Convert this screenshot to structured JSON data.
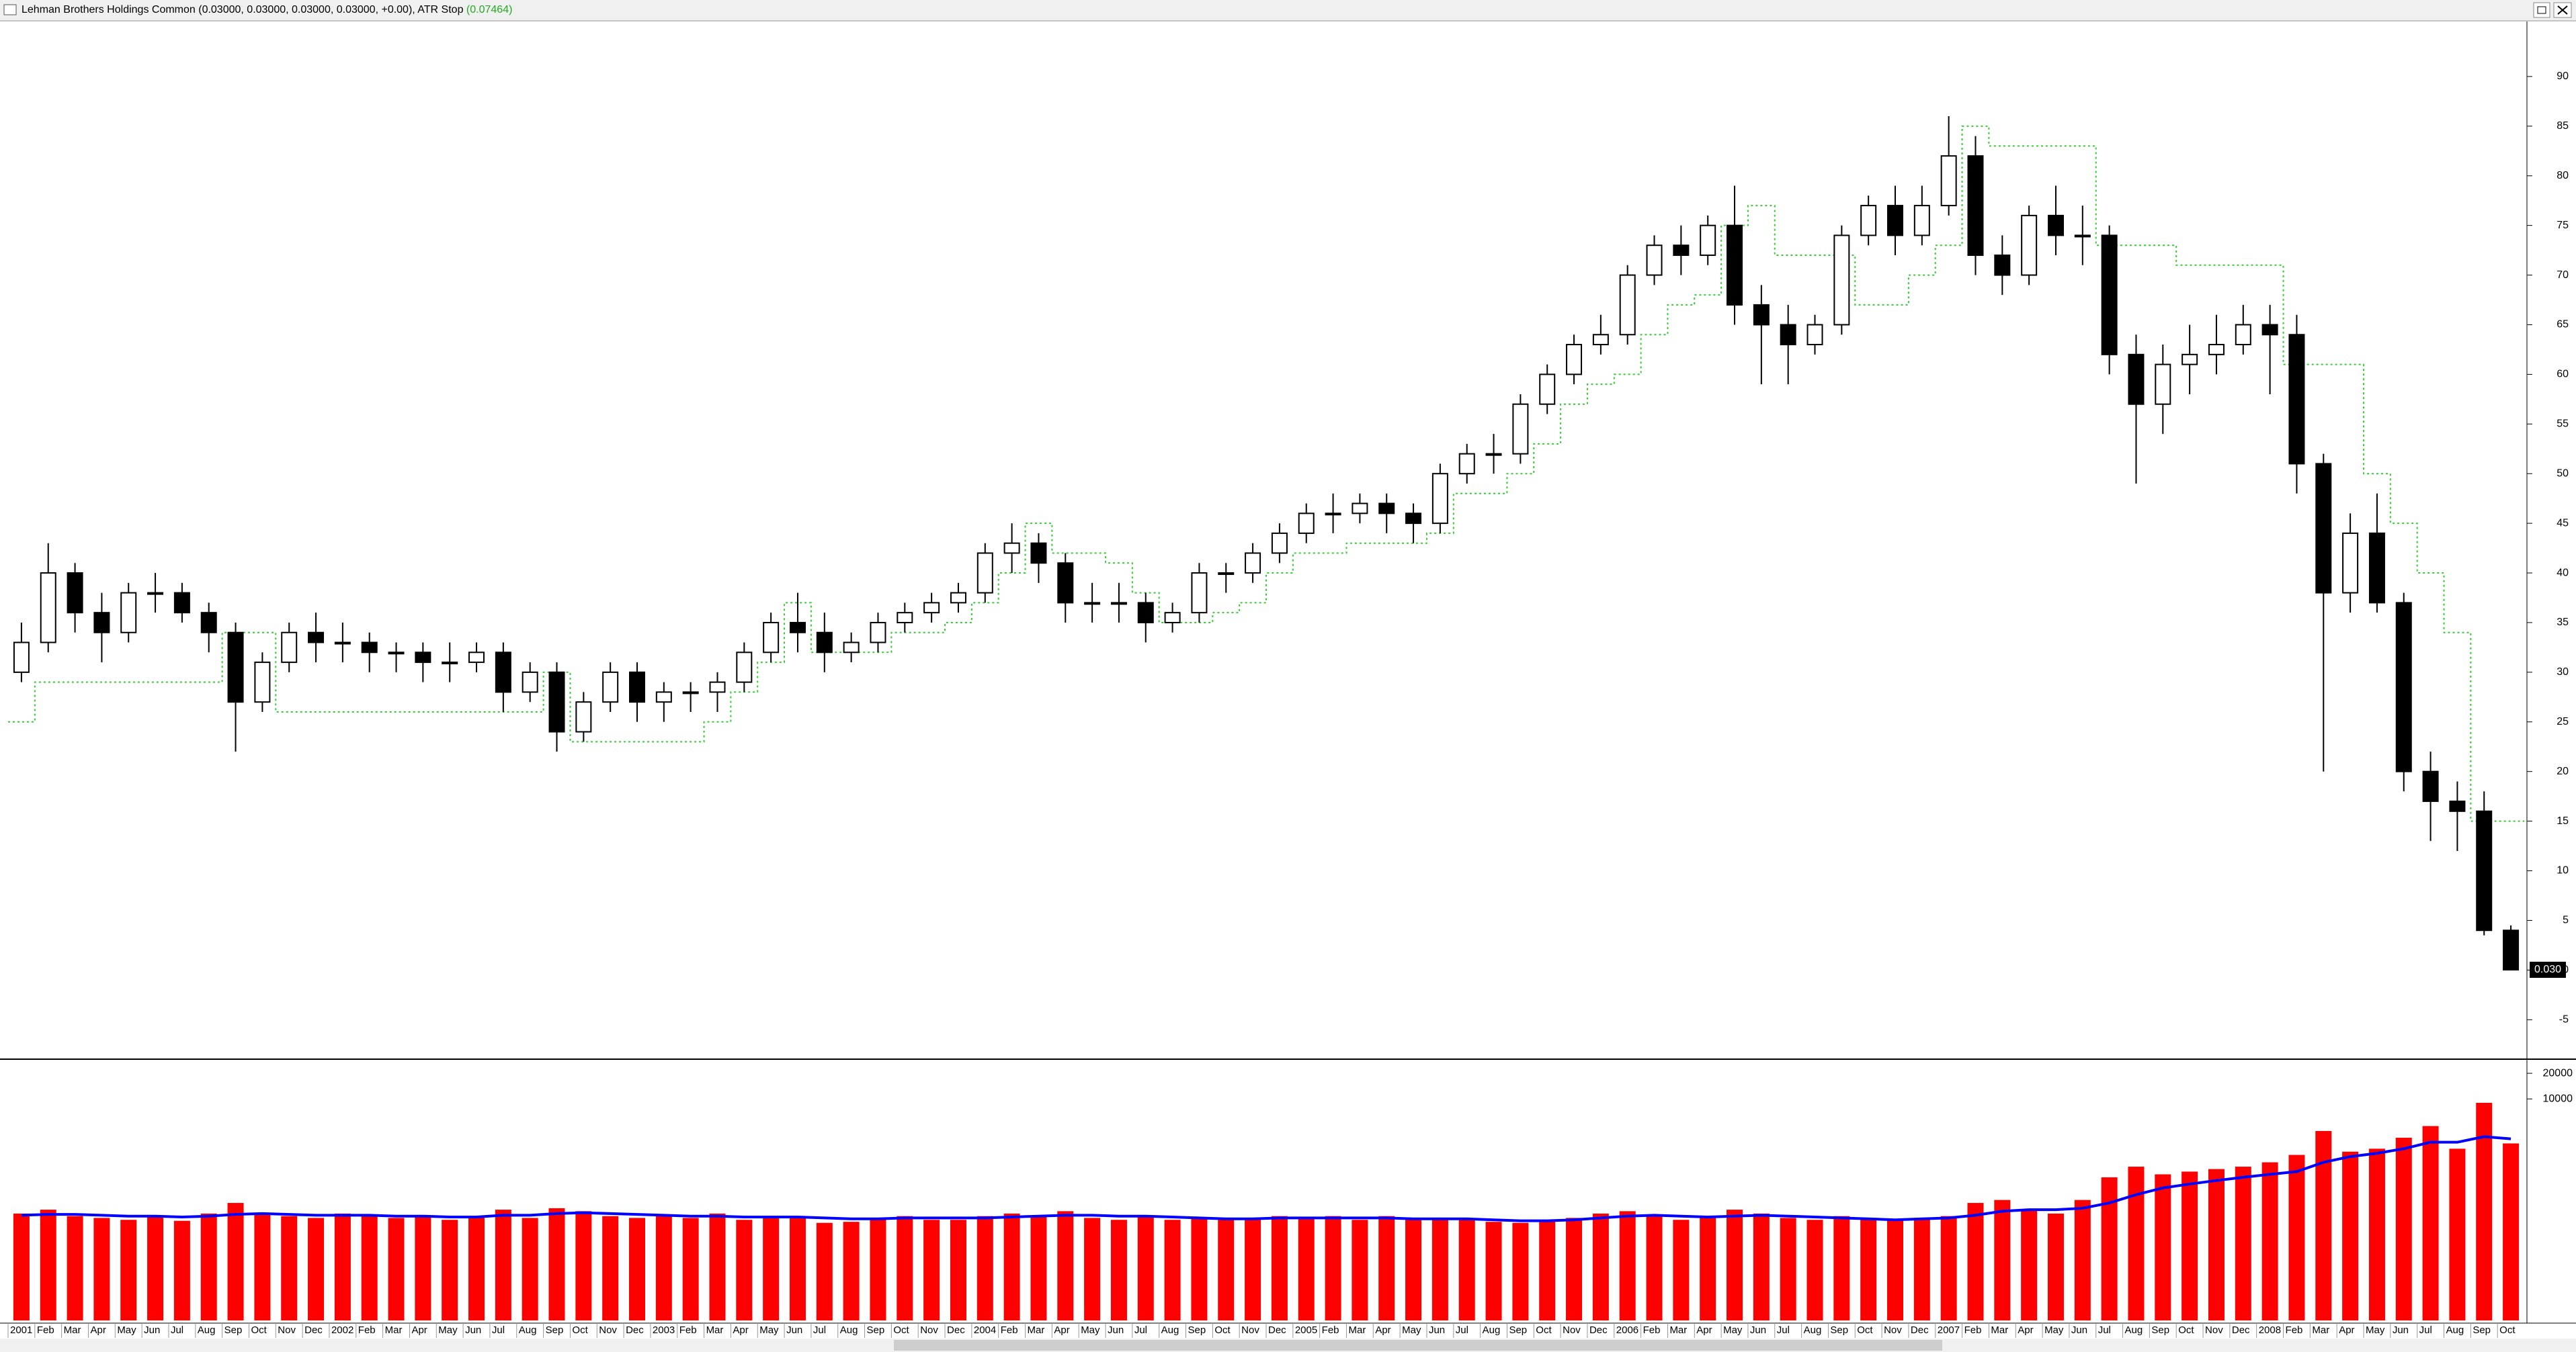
{
  "window": {
    "title": "Lehman Brothers Holdings Common (0.03000, 0.03000, 0.03000, 0.03000, +0.00), ATR Stop",
    "atr_stop_label": "(0.07464)"
  },
  "chart_data": [
    {
      "type": "candlestick",
      "categories": [
        "2001",
        "Feb",
        "Mar",
        "Apr",
        "May",
        "Jun",
        "Jul",
        "Aug",
        "Sep",
        "Oct",
        "Nov",
        "Dec",
        "2002",
        "Feb",
        "Mar",
        "Apr",
        "May",
        "Jun",
        "Jul",
        "Aug",
        "Sep",
        "Oct",
        "Nov",
        "Dec",
        "2003",
        "Feb",
        "Mar",
        "Apr",
        "May",
        "Jun",
        "Jul",
        "Aug",
        "Sep",
        "Oct",
        "Nov",
        "Dec",
        "2004",
        "Feb",
        "Mar",
        "Apr",
        "May",
        "Jun",
        "Jul",
        "Aug",
        "Sep",
        "Oct",
        "Nov",
        "Dec",
        "2005",
        "Feb",
        "Mar",
        "Apr",
        "May",
        "Jun",
        "Jul",
        "Aug",
        "Sep",
        "Oct",
        "Nov",
        "Dec",
        "2006",
        "Feb",
        "Mar",
        "Apr",
        "May",
        "Jun",
        "Jul",
        "Aug",
        "Sep",
        "Oct",
        "Nov",
        "Dec",
        "2007",
        "Feb",
        "Mar",
        "Apr",
        "May",
        "Jun",
        "Jul",
        "Aug",
        "Sep",
        "Oct",
        "Nov",
        "Dec",
        "2008",
        "Feb",
        "Mar",
        "Apr",
        "May",
        "Jun",
        "Jul",
        "Aug",
        "Sep",
        "Oct"
      ],
      "open": [
        30,
        33,
        40,
        36,
        34,
        38,
        38,
        36,
        34,
        27,
        31,
        34,
        33,
        33,
        32,
        32,
        31,
        31,
        32,
        28,
        30,
        24,
        27,
        30,
        27,
        28,
        28,
        29,
        32,
        35,
        34,
        32,
        33,
        35,
        36,
        37,
        38,
        42,
        43,
        41,
        37,
        37,
        37,
        35,
        36,
        40,
        40,
        42,
        44,
        46,
        46,
        47,
        46,
        45,
        50,
        52,
        52,
        57,
        60,
        63,
        64,
        70,
        73,
        72,
        75,
        67,
        65,
        63,
        65,
        74,
        77,
        74,
        77,
        82,
        72,
        70,
        76,
        74,
        74,
        62,
        57,
        61,
        62,
        63,
        65,
        64,
        51,
        38,
        44,
        37,
        20,
        17,
        16,
        4
      ],
      "high": [
        35,
        43,
        41,
        38,
        39,
        40,
        39,
        37,
        35,
        32,
        35,
        36,
        35,
        34,
        33,
        33,
        33,
        33,
        33,
        31,
        31,
        28,
        31,
        31,
        29,
        29,
        30,
        33,
        36,
        38,
        36,
        34,
        36,
        37,
        38,
        39,
        43,
        45,
        44,
        42,
        39,
        39,
        38,
        37,
        41,
        41,
        43,
        45,
        47,
        48,
        48,
        48,
        47,
        51,
        53,
        54,
        58,
        61,
        64,
        66,
        71,
        74,
        75,
        76,
        79,
        69,
        67,
        66,
        75,
        78,
        79,
        79,
        86,
        84,
        74,
        77,
        79,
        77,
        75,
        64,
        63,
        65,
        66,
        67,
        67,
        66,
        52,
        46,
        48,
        38,
        22,
        19,
        18,
        4.5
      ],
      "low": [
        29,
        32,
        34,
        31,
        33,
        36,
        35,
        32,
        22,
        26,
        30,
        31,
        31,
        30,
        30,
        29,
        29,
        30,
        26,
        27,
        22,
        23,
        26,
        25,
        25,
        26,
        26,
        28,
        31,
        32,
        30,
        31,
        32,
        34,
        35,
        36,
        37,
        40,
        39,
        35,
        35,
        35,
        33,
        34,
        35,
        38,
        39,
        41,
        43,
        44,
        45,
        44,
        43,
        44,
        49,
        50,
        51,
        56,
        59,
        62,
        63,
        69,
        70,
        71,
        65,
        59,
        59,
        62,
        64,
        73,
        72,
        73,
        76,
        70,
        68,
        69,
        72,
        71,
        60,
        49,
        54,
        58,
        60,
        62,
        58,
        48,
        20,
        36,
        36,
        18,
        13,
        12,
        3.5,
        0.03
      ],
      "close": [
        33,
        40,
        36,
        34,
        38,
        38,
        36,
        34,
        27,
        31,
        34,
        33,
        33,
        32,
        32,
        31,
        31,
        32,
        28,
        30,
        24,
        27,
        30,
        27,
        28,
        28,
        29,
        32,
        35,
        34,
        32,
        33,
        35,
        36,
        37,
        38,
        42,
        43,
        41,
        37,
        37,
        37,
        35,
        36,
        40,
        40,
        42,
        44,
        46,
        46,
        47,
        46,
        45,
        50,
        52,
        52,
        57,
        60,
        63,
        64,
        70,
        73,
        72,
        75,
        67,
        65,
        63,
        65,
        74,
        77,
        74,
        77,
        82,
        72,
        70,
        76,
        74,
        74,
        62,
        57,
        61,
        62,
        63,
        65,
        64,
        51,
        38,
        44,
        37,
        20,
        17,
        16,
        4,
        0.03
      ],
      "stop": {
        "color": "#33cc33",
        "values": [
          25,
          29,
          29,
          29,
          29,
          29,
          29,
          29,
          34,
          34,
          26,
          26,
          26,
          26,
          26,
          26,
          26,
          26,
          26,
          26,
          30,
          23,
          23,
          23,
          23,
          23,
          25,
          28,
          31,
          37,
          32,
          32,
          32,
          34,
          34,
          35,
          37,
          40,
          45,
          42,
          42,
          41,
          38,
          35,
          35,
          36,
          37,
          40,
          42,
          42,
          43,
          43,
          43,
          44,
          48,
          48,
          50,
          53,
          57,
          59,
          60,
          64,
          67,
          68,
          75,
          77,
          72,
          72,
          72,
          67,
          67,
          70,
          73,
          85,
          83,
          83,
          83,
          83,
          73,
          73,
          73,
          71,
          71,
          71,
          71,
          61,
          61,
          61,
          50,
          45,
          40,
          34,
          15,
          15
        ]
      },
      "last_label": {
        "value": 0.03,
        "label": "0.030"
      },
      "up_color": "#ffffff",
      "down_color": "#000000",
      "ylim": [
        -8.5,
        95
      ],
      "yticks": [
        -5,
        0,
        5,
        10,
        15,
        20,
        25,
        30,
        35,
        40,
        45,
        50,
        55,
        60,
        65,
        70,
        75,
        80,
        85,
        90
      ]
    },
    {
      "type": "bar",
      "log": true,
      "color": "#ff0000",
      "values": [
        450,
        500,
        420,
        400,
        380,
        420,
        370,
        450,
        600,
        450,
        420,
        400,
        450,
        420,
        400,
        430,
        380,
        420,
        500,
        400,
        520,
        480,
        420,
        400,
        420,
        400,
        450,
        380,
        420,
        400,
        350,
        360,
        400,
        420,
        380,
        380,
        420,
        450,
        420,
        480,
        400,
        380,
        420,
        380,
        400,
        380,
        400,
        420,
        400,
        420,
        380,
        420,
        380,
        400,
        380,
        360,
        350,
        380,
        400,
        450,
        480,
        420,
        380,
        400,
        500,
        450,
        400,
        380,
        420,
        380,
        380,
        400,
        420,
        600,
        650,
        500,
        450,
        650,
        1200,
        1600,
        1300,
        1400,
        1500,
        1600,
        1800,
        2200,
        4200,
        2400,
        2600,
        3500,
        4800,
        2600,
        9000,
        3000
      ],
      "ma": {
        "color": "#0000ff",
        "values": [
          430,
          440,
          440,
          430,
          420,
          420,
          410,
          420,
          440,
          450,
          440,
          430,
          430,
          430,
          420,
          420,
          410,
          410,
          430,
          430,
          450,
          460,
          450,
          440,
          430,
          420,
          420,
          410,
          410,
          410,
          400,
          390,
          390,
          400,
          400,
          400,
          400,
          410,
          420,
          430,
          430,
          420,
          420,
          410,
          400,
          390,
          390,
          400,
          400,
          400,
          400,
          400,
          390,
          390,
          390,
          380,
          370,
          370,
          380,
          400,
          420,
          430,
          420,
          410,
          420,
          430,
          420,
          410,
          400,
          390,
          380,
          390,
          400,
          430,
          480,
          500,
          500,
          520,
          600,
          750,
          900,
          1000,
          1100,
          1200,
          1300,
          1400,
          1800,
          2100,
          2300,
          2600,
          3100,
          3100,
          3600,
          3400
        ]
      },
      "ylim": [
        25,
        24000
      ],
      "yticks": [
        10000,
        20000
      ]
    }
  ]
}
